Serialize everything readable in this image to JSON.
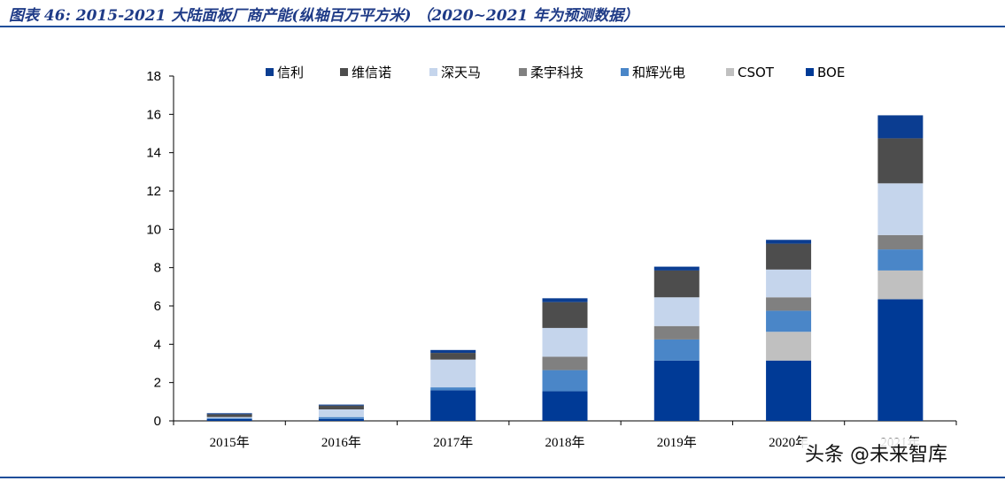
{
  "header": {
    "title": "图表 46:  2015-2021 大陆面板厂商产能(纵轴百万平方米) （2020~2021 年为预测数据）"
  },
  "watermark": "头条 @未来智库",
  "chart_data": {
    "type": "bar",
    "stacked": true,
    "categories": [
      "2015年",
      "2016年",
      "2017年",
      "2018年",
      "2019年",
      "2020年",
      "2021年"
    ],
    "ylim": [
      0,
      18
    ],
    "yticks": [
      0,
      2,
      4,
      6,
      8,
      10,
      12,
      14,
      16,
      18
    ],
    "legend_position": "top",
    "grid": false,
    "stack_order": [
      "BOE",
      "CSOT",
      "和辉光电",
      "柔宇科技",
      "深天马",
      "维信诺",
      "信利"
    ],
    "series": [
      {
        "name": "信利",
        "color": "#0b3d91",
        "values": [
          0.05,
          0.05,
          0.15,
          0.2,
          0.2,
          0.2,
          1.2
        ]
      },
      {
        "name": "维信诺",
        "color": "#4d4d4d",
        "values": [
          0.15,
          0.2,
          0.35,
          1.35,
          1.4,
          1.35,
          2.35
        ]
      },
      {
        "name": "深天马",
        "color": "#c5d5ec",
        "values": [
          0.05,
          0.4,
          1.45,
          1.5,
          1.5,
          1.45,
          2.7
        ]
      },
      {
        "name": "柔宇科技",
        "color": "#808080",
        "values": [
          0.0,
          0.0,
          0.0,
          0.7,
          0.7,
          0.7,
          0.75
        ]
      },
      {
        "name": "和辉光电",
        "color": "#4a86c8",
        "values": [
          0.05,
          0.1,
          0.15,
          1.1,
          1.1,
          1.1,
          1.1
        ]
      },
      {
        "name": "CSOT",
        "color": "#c0c0c0",
        "values": [
          0.0,
          0.0,
          0.0,
          0.0,
          0.0,
          1.5,
          1.5
        ]
      },
      {
        "name": "BOE",
        "color": "#003a96",
        "values": [
          0.1,
          0.1,
          1.6,
          1.55,
          3.15,
          3.15,
          6.35
        ]
      }
    ]
  }
}
